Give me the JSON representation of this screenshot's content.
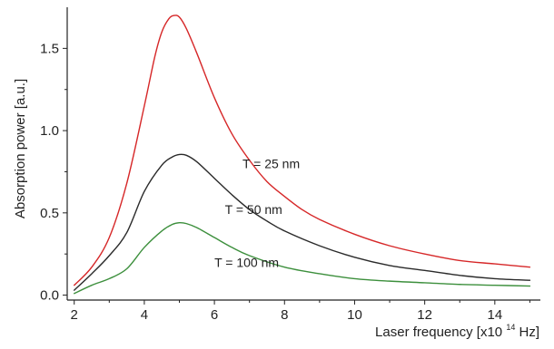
{
  "chart_data": {
    "type": "line",
    "title": "",
    "xlabel": "Laser frequency [x10",
    "xlabel_exponent": "14",
    "xlabel_unit": " Hz]",
    "ylabel": "Absorption power [a.u.]",
    "xlim": [
      1.8,
      15.3
    ],
    "ylim": [
      -0.03,
      1.75
    ],
    "xticks": [
      2,
      4,
      6,
      8,
      10,
      12,
      14
    ],
    "xtick_labels": [
      "2",
      "4",
      "6",
      "8",
      "10",
      "12",
      "14"
    ],
    "yticks": [
      0.0,
      0.5,
      1.0,
      1.5
    ],
    "ytick_labels": [
      "0.0",
      "0.5",
      "1.0",
      "1.5"
    ],
    "grid": false,
    "legend": "inline labels",
    "series": [
      {
        "name": "T = 25 nm",
        "color": "#d62728",
        "x": [
          2.0,
          2.5,
          3.0,
          3.5,
          4.0,
          4.3,
          4.5,
          4.7,
          4.85,
          5.0,
          5.2,
          5.5,
          6.0,
          6.5,
          7.0,
          7.5,
          8.0,
          8.5,
          9.0,
          10.0,
          11.0,
          12.0,
          13.0,
          14.0,
          15.0
        ],
        "y": [
          0.06,
          0.17,
          0.35,
          0.68,
          1.15,
          1.45,
          1.6,
          1.68,
          1.7,
          1.69,
          1.62,
          1.47,
          1.2,
          0.98,
          0.82,
          0.69,
          0.6,
          0.52,
          0.46,
          0.37,
          0.3,
          0.25,
          0.21,
          0.19,
          0.17
        ]
      },
      {
        "name": "T = 50 nm",
        "color": "#2a2a2a",
        "x": [
          2.0,
          2.5,
          3.0,
          3.5,
          4.0,
          4.5,
          4.8,
          5.0,
          5.2,
          5.5,
          6.0,
          6.5,
          7.0,
          7.5,
          8.0,
          9.0,
          10.0,
          11.0,
          12.0,
          13.0,
          14.0,
          15.0
        ],
        "y": [
          0.03,
          0.13,
          0.24,
          0.38,
          0.63,
          0.79,
          0.84,
          0.855,
          0.85,
          0.81,
          0.71,
          0.61,
          0.52,
          0.45,
          0.39,
          0.3,
          0.23,
          0.18,
          0.15,
          0.12,
          0.1,
          0.09
        ]
      },
      {
        "name": "T = 100 nm",
        "color": "#3c8f3c",
        "x": [
          2.0,
          2.5,
          3.0,
          3.5,
          4.0,
          4.5,
          4.8,
          5.0,
          5.2,
          5.5,
          6.0,
          6.5,
          7.0,
          8.0,
          9.0,
          10.0,
          11.0,
          12.0,
          13.0,
          14.0,
          15.0
        ],
        "y": [
          0.01,
          0.06,
          0.1,
          0.16,
          0.29,
          0.39,
          0.43,
          0.44,
          0.435,
          0.41,
          0.35,
          0.29,
          0.24,
          0.17,
          0.13,
          0.1,
          0.085,
          0.075,
          0.065,
          0.06,
          0.055
        ]
      }
    ],
    "annotations": [
      {
        "text": "T = 25 nm",
        "x": 6.8,
        "y": 0.8
      },
      {
        "text": "T = 50 nm",
        "x": 6.3,
        "y": 0.52
      },
      {
        "text": "T = 100 nm",
        "x": 6.0,
        "y": 0.2
      }
    ]
  }
}
